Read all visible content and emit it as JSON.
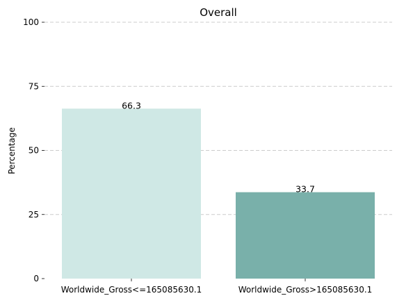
{
  "chart_data": {
    "type": "bar",
    "title": "Overall",
    "xlabel": "",
    "ylabel": "Percentage",
    "categories": [
      "Worldwide_Gross<=165085630.1",
      "Worldwide_Gross>165085630.1"
    ],
    "values": [
      66.3,
      33.7
    ],
    "data_labels": [
      "66.3",
      "33.7"
    ],
    "colors": [
      "#cfe8e5",
      "#79b0aa"
    ],
    "ylim": [
      0,
      100
    ],
    "yticks": [
      0,
      25,
      50,
      75,
      100
    ],
    "grid": true,
    "legend": "none"
  }
}
